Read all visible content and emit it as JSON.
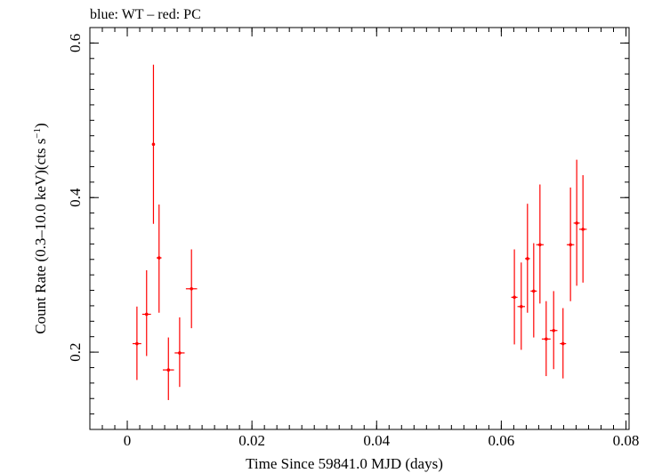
{
  "chart_data": {
    "type": "scatter",
    "title": "blue: WT – red: PC",
    "xlabel": "Time Since 59841.0 MJD (days)",
    "ylabel_parts": {
      "main": "Count Rate (0.3–10.0 keV)(cts s",
      "sup": "−1",
      "close": ")"
    },
    "xlim": [
      -0.006,
      0.0805
    ],
    "ylim": [
      0.1,
      0.62
    ],
    "xticks": [
      0,
      0.02,
      0.04,
      0.06,
      0.08
    ],
    "xtick_labels": [
      "0",
      "0.02",
      "0.04",
      "0.06",
      "0.08"
    ],
    "yticks": [
      0.2,
      0.4,
      0.6
    ],
    "ytick_labels": [
      "0.2",
      "0.4",
      "0.6"
    ],
    "xminor_step": 0.002,
    "yminor_step": 0.02,
    "grid": false,
    "series": [
      {
        "color": "#ff0000",
        "points": [
          {
            "x": 0.00155,
            "xerr": 0.0007,
            "y": 0.211,
            "ylo": 0.164,
            "yhi": 0.259
          },
          {
            "x": 0.0031,
            "xerr": 0.0007,
            "y": 0.249,
            "ylo": 0.195,
            "yhi": 0.306
          },
          {
            "x": 0.0042,
            "xerr": 0.0002,
            "y": 0.469,
            "ylo": 0.366,
            "yhi": 0.572
          },
          {
            "x": 0.0051,
            "xerr": 0.0004,
            "y": 0.322,
            "ylo": 0.251,
            "yhi": 0.391
          },
          {
            "x": 0.0066,
            "xerr": 0.0009,
            "y": 0.177,
            "ylo": 0.138,
            "yhi": 0.219
          },
          {
            "x": 0.0084,
            "xerr": 0.0008,
            "y": 0.199,
            "ylo": 0.155,
            "yhi": 0.245
          },
          {
            "x": 0.0103,
            "xerr": 0.0009,
            "y": 0.282,
            "ylo": 0.231,
            "yhi": 0.333
          },
          {
            "x": 0.0621,
            "xerr": 0.0005,
            "y": 0.271,
            "ylo": 0.21,
            "yhi": 0.333
          },
          {
            "x": 0.0632,
            "xerr": 0.0006,
            "y": 0.259,
            "ylo": 0.203,
            "yhi": 0.316
          },
          {
            "x": 0.0642,
            "xerr": 0.0004,
            "y": 0.321,
            "ylo": 0.251,
            "yhi": 0.392
          },
          {
            "x": 0.0652,
            "xerr": 0.0005,
            "y": 0.279,
            "ylo": 0.219,
            "yhi": 0.341
          },
          {
            "x": 0.0662,
            "xerr": 0.0006,
            "y": 0.339,
            "ylo": 0.263,
            "yhi": 0.417
          },
          {
            "x": 0.0672,
            "xerr": 0.0007,
            "y": 0.217,
            "ylo": 0.169,
            "yhi": 0.266
          },
          {
            "x": 0.0684,
            "xerr": 0.0006,
            "y": 0.228,
            "ylo": 0.178,
            "yhi": 0.279
          },
          {
            "x": 0.0699,
            "xerr": 0.0005,
            "y": 0.211,
            "ylo": 0.166,
            "yhi": 0.257
          },
          {
            "x": 0.0711,
            "xerr": 0.0006,
            "y": 0.339,
            "ylo": 0.266,
            "yhi": 0.413
          },
          {
            "x": 0.0721,
            "xerr": 0.0005,
            "y": 0.367,
            "ylo": 0.286,
            "yhi": 0.449
          },
          {
            "x": 0.0731,
            "xerr": 0.0006,
            "y": 0.359,
            "ylo": 0.29,
            "yhi": 0.429
          }
        ]
      }
    ]
  }
}
